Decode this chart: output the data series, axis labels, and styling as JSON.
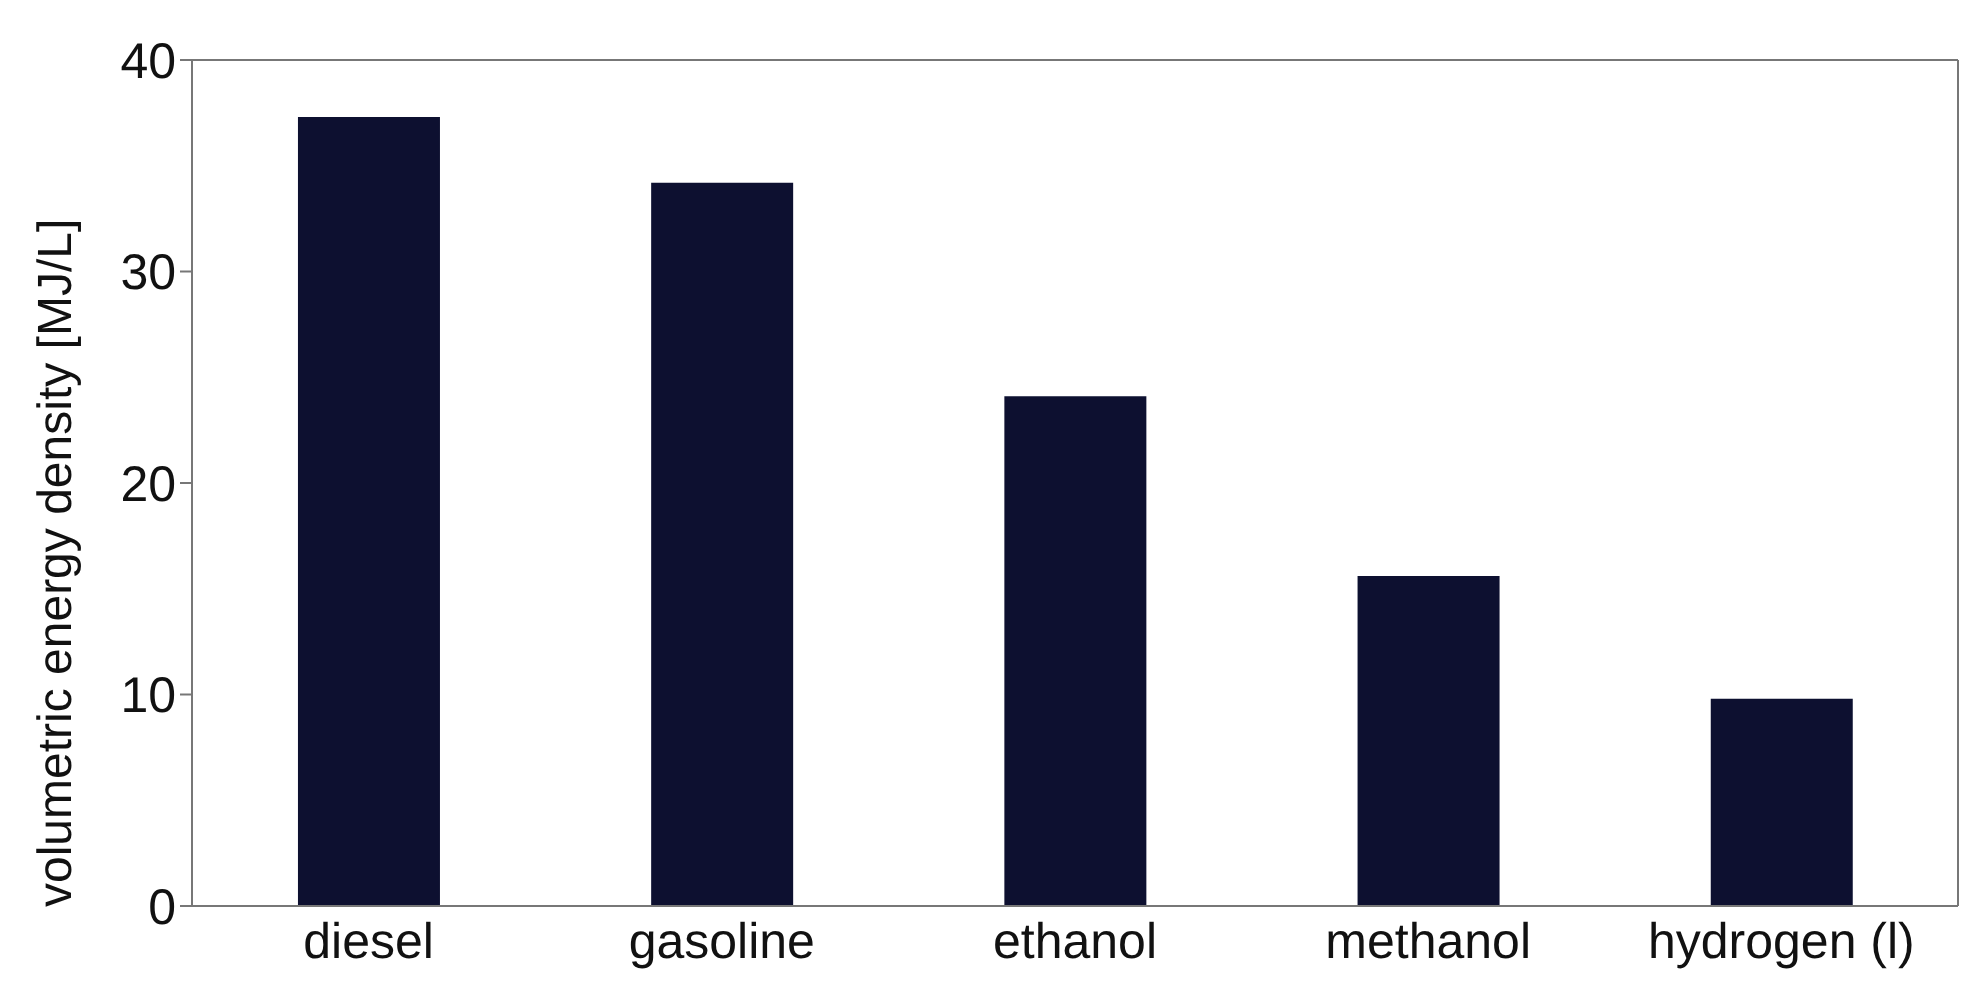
{
  "chart_data": {
    "type": "bar",
    "ylabel": "volumetric energy density [MJ/L]",
    "categories": [
      "diesel",
      "gasoline",
      "ethanol",
      "methanol",
      "hydrogen (l)"
    ],
    "values": [
      37.3,
      34.2,
      24.1,
      15.6,
      9.8
    ],
    "color": "#0d1030",
    "ylim": [
      0,
      40
    ],
    "yticks": [
      0,
      10,
      20,
      30,
      40
    ],
    "grid": false,
    "legend": false
  }
}
